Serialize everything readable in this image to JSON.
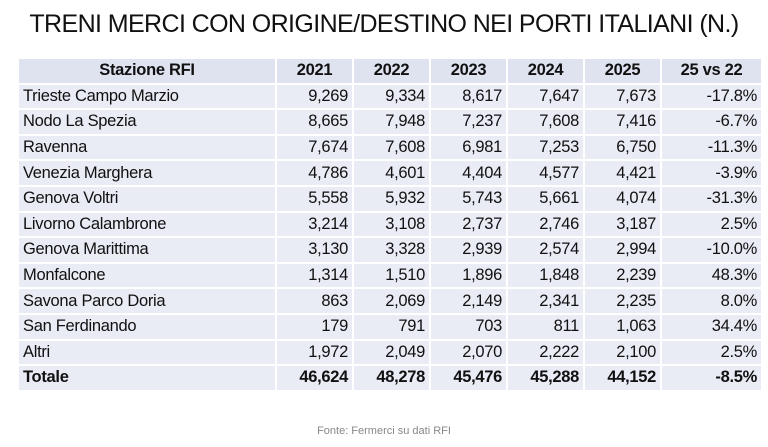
{
  "title": "TRENI MERCI CON ORIGINE/DESTINO NEI PORTI ITALIANI (N.)",
  "source": "Fonte: Fermerci su dati RFI",
  "chart_data": {
    "type": "table",
    "title": "TRENI MERCI CON ORIGINE/DESTINO NEI PORTI ITALIANI (N.)",
    "columns": [
      "Stazione RFI",
      "2021",
      "2022",
      "2023",
      "2024",
      "2025",
      "25 vs 22"
    ],
    "rows": [
      [
        "Trieste Campo Marzio",
        "9,269",
        "9,334",
        "8,617",
        "7,647",
        "7,673",
        "-17.8%"
      ],
      [
        "Nodo La Spezia",
        "8,665",
        "7,948",
        "7,237",
        "7,608",
        "7,416",
        "-6.7%"
      ],
      [
        "Ravenna",
        "7,674",
        "7,608",
        "6,981",
        "7,253",
        "6,750",
        "-11.3%"
      ],
      [
        "Venezia Marghera",
        "4,786",
        "4,601",
        "4,404",
        "4,577",
        "4,421",
        "-3.9%"
      ],
      [
        "Genova Voltri",
        "5,558",
        "5,932",
        "5,743",
        "5,661",
        "4,074",
        "-31.3%"
      ],
      [
        "Livorno Calambrone",
        "3,214",
        "3,108",
        "2,737",
        "2,746",
        "3,187",
        "2.5%"
      ],
      [
        "Genova Marittima",
        "3,130",
        "3,328",
        "2,939",
        "2,574",
        "2,994",
        "-10.0%"
      ],
      [
        "Monfalcone",
        "1,314",
        "1,510",
        "1,896",
        "1,848",
        "2,239",
        "48.3%"
      ],
      [
        "Savona Parco Doria",
        "863",
        "2,069",
        "2,149",
        "2,341",
        "2,235",
        "8.0%"
      ],
      [
        "San Ferdinando",
        "179",
        "791",
        "703",
        "811",
        "1,063",
        "34.4%"
      ],
      [
        "Altri",
        "1,972",
        "2,049",
        "2,070",
        "2,222",
        "2,100",
        "2.5%"
      ]
    ],
    "total": [
      "Totale",
      "46,624",
      "48,278",
      "45,476",
      "45,288",
      "44,152",
      "-8.5%"
    ],
    "colors": {
      "cell_background": "#e9ebf5",
      "grid": "#ffffff"
    }
  }
}
